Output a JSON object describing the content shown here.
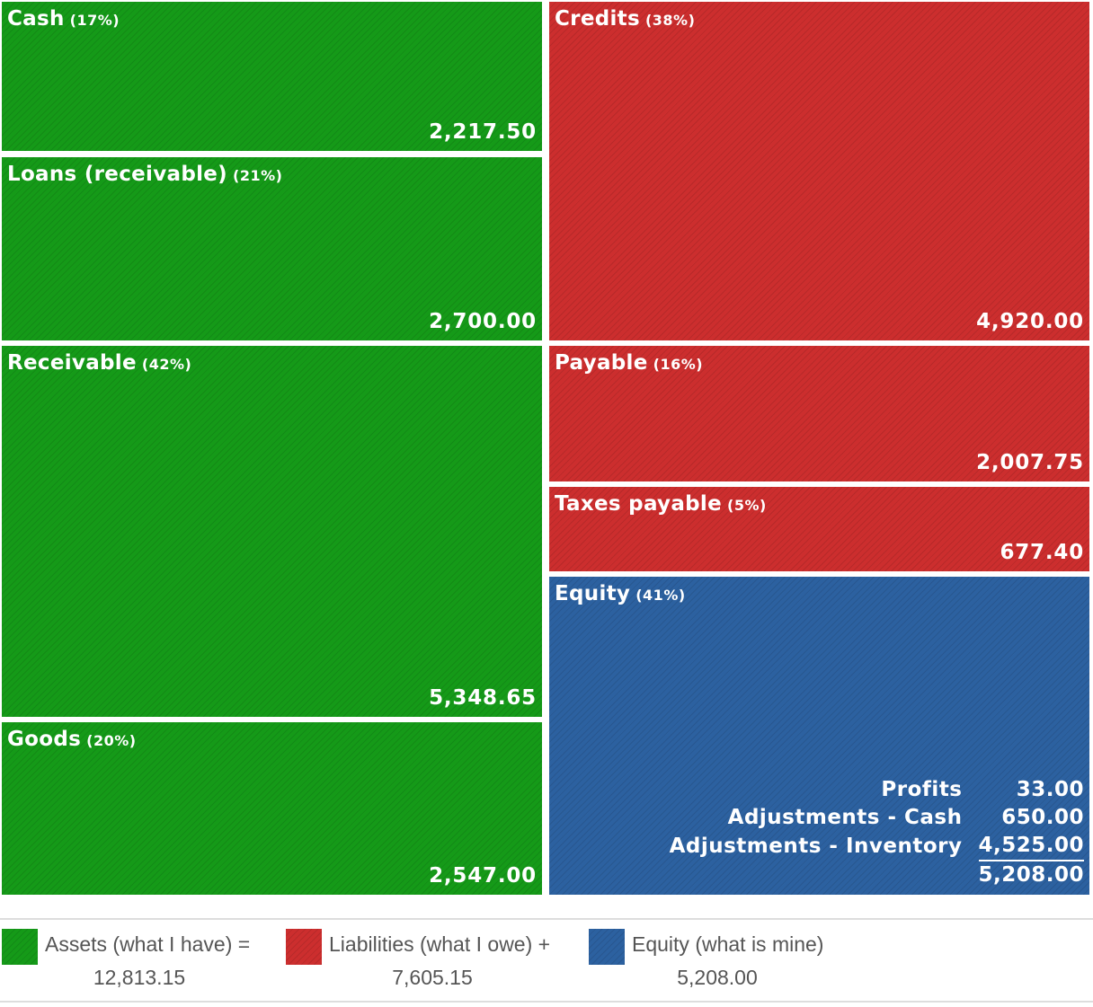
{
  "chart_data": {
    "type": "treemap",
    "colors": {
      "assets": "#159a18",
      "liabilities": "#cc2e2e",
      "equity": "#2c61a0"
    },
    "blocks": [
      {
        "id": "cash",
        "group": "assets",
        "label": "Cash",
        "pct": "(17%)",
        "value": "2,217.50"
      },
      {
        "id": "loans",
        "group": "assets",
        "label": "Loans (receivable)",
        "pct": "(21%)",
        "value": "2,700.00"
      },
      {
        "id": "receivable",
        "group": "assets",
        "label": "Receivable",
        "pct": "(42%)",
        "value": "5,348.65"
      },
      {
        "id": "goods",
        "group": "assets",
        "label": "Goods",
        "pct": "(20%)",
        "value": "2,547.00"
      },
      {
        "id": "credits",
        "group": "liabilities",
        "label": "Credits",
        "pct": "(38%)",
        "value": "4,920.00"
      },
      {
        "id": "payable",
        "group": "liabilities",
        "label": "Payable",
        "pct": "(16%)",
        "value": "2,007.75"
      },
      {
        "id": "taxes",
        "group": "liabilities",
        "label": "Taxes payable",
        "pct": "(5%)",
        "value": "677.40"
      },
      {
        "id": "equity",
        "group": "equity",
        "label": "Equity",
        "pct": "(41%)",
        "value": "5,208.00"
      }
    ],
    "equity_breakdown": [
      {
        "label": "Profits",
        "value": "33.00"
      },
      {
        "label": "Adjustments - Cash",
        "value": "650.00"
      },
      {
        "label": "Adjustments - Inventory",
        "value": "4,525.00"
      }
    ],
    "equity_total": "5,208.00",
    "legend": [
      {
        "key": "assets",
        "label": "Assets (what I have) =",
        "total": "12,813.15"
      },
      {
        "key": "liabilities",
        "label": "Liabilities (what I owe) +",
        "total": "7,605.15"
      },
      {
        "key": "equity",
        "label": "Equity (what is mine)",
        "total": "5,208.00"
      }
    ]
  }
}
